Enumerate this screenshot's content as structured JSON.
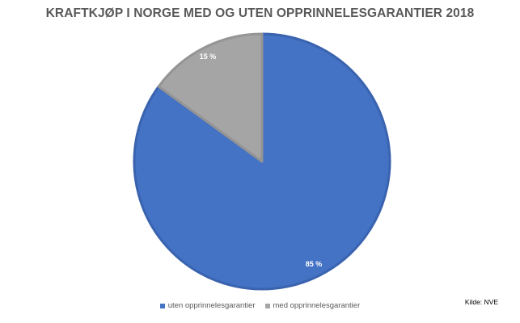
{
  "chart_data": {
    "type": "pie",
    "title": "KRAFTKJØP I NORGE MED OG UTEN OPPRINNELESGARANTIER 2018",
    "slices": [
      {
        "name": "uten opprinnelesgarantier",
        "value": 85,
        "label": "85 %",
        "color": "#4472C4"
      },
      {
        "name": "med opprinnelesgarantier",
        "value": 15,
        "label": "15 %",
        "color": "#A5A5A5"
      }
    ],
    "legend_position": "bottom",
    "start_angle": "12 o'clock, clockwise"
  },
  "source": "Kilde: NVE"
}
